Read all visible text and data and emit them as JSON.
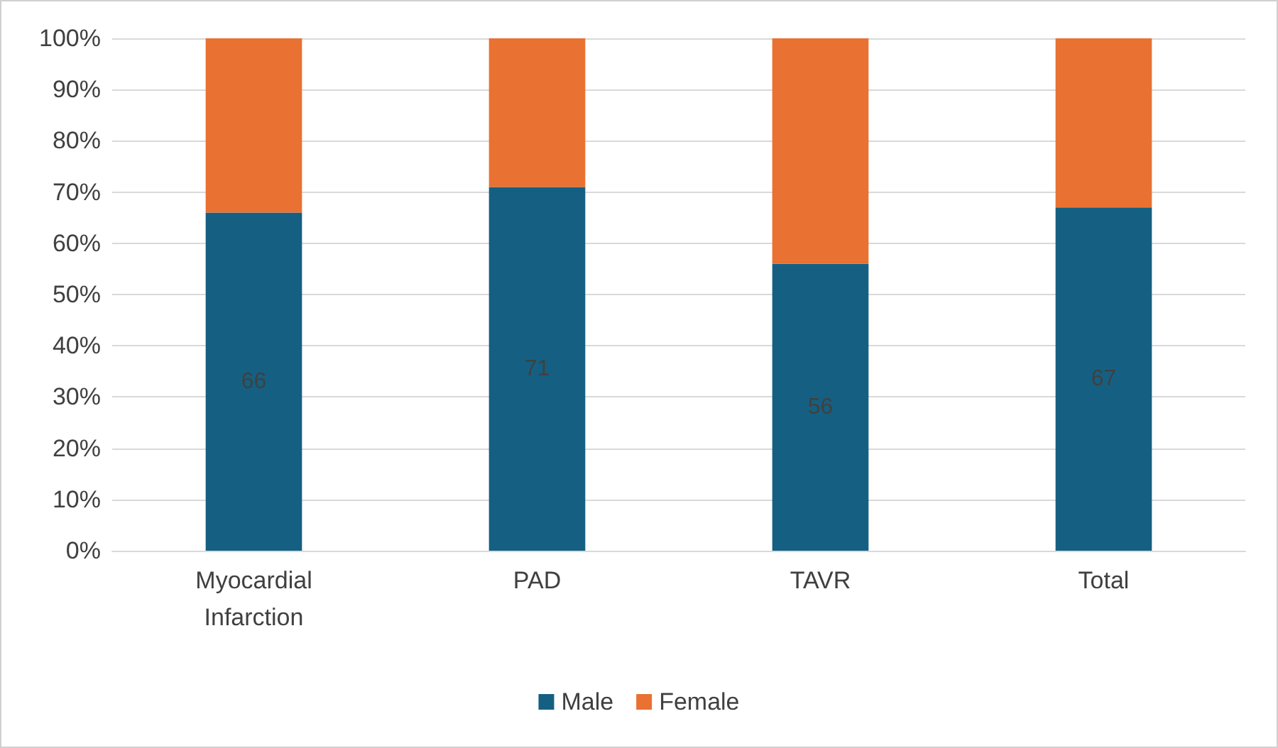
{
  "chart_data": {
    "type": "bar",
    "stacked": true,
    "categories": [
      "Myocardial\nInfarction",
      "PAD",
      "TAVR",
      "Total"
    ],
    "series": [
      {
        "name": "Male",
        "color": "#156082",
        "values": [
          66,
          71,
          56,
          67
        ],
        "value_labels": [
          "66",
          "71",
          "56",
          "67"
        ]
      },
      {
        "name": "Female",
        "color": "#e97132",
        "values": [
          34,
          29,
          44,
          33
        ]
      }
    ],
    "ylim": [
      0,
      100
    ],
    "yticks": [
      {
        "value": 0,
        "label": "0%"
      },
      {
        "value": 10,
        "label": "10%"
      },
      {
        "value": 20,
        "label": "20%"
      },
      {
        "value": 30,
        "label": "30%"
      },
      {
        "value": 40,
        "label": "40%"
      },
      {
        "value": 50,
        "label": "50%"
      },
      {
        "value": 60,
        "label": "60%"
      },
      {
        "value": 70,
        "label": "70%"
      },
      {
        "value": 80,
        "label": "80%"
      },
      {
        "value": 90,
        "label": "90%"
      },
      {
        "value": 100,
        "label": "100%"
      }
    ],
    "grid": "y",
    "legend": "bottom"
  }
}
